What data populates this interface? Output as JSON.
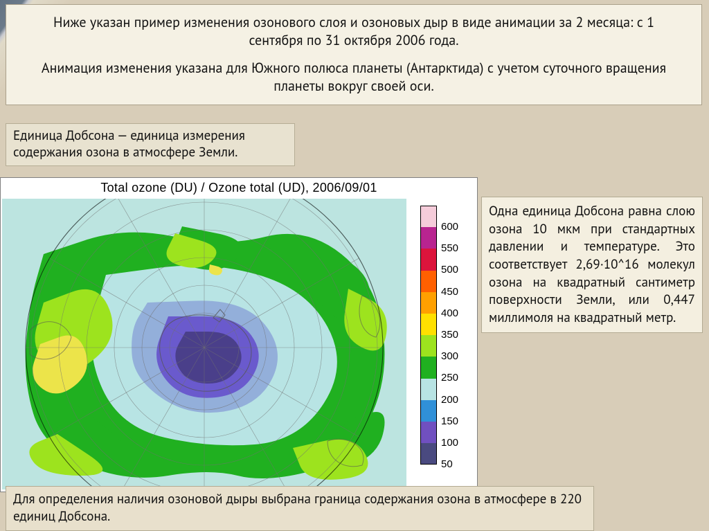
{
  "top": {
    "line1": "Ниже указан пример изменения озонового слоя и озоновых дыр в виде анимации за 2 месяца: с 1 сентября по 31 октября 2006 года.",
    "line2": "Анимация изменения указана для Южного полюса планеты (Антарктида) с учетом суточного вращения планеты вокруг своей оси."
  },
  "dobson": "Единица Добсона — единица измерения содержания озона в атмосфере Земли.",
  "chart": {
    "title": "Total ozone (DU) / Ozone total (UD), 2006/09/01",
    "bg_ocean": "#bce4e0",
    "legend": [
      {
        "v": 600,
        "c": "#f5ccda"
      },
      {
        "v": 550,
        "c": "#b82490"
      },
      {
        "v": 500,
        "c": "#dc143c"
      },
      {
        "v": 450,
        "c": "#ff6000"
      },
      {
        "v": 400,
        "c": "#ffa000"
      },
      {
        "v": 350,
        "c": "#ffe000"
      },
      {
        "v": 300,
        "c": "#9de31e"
      },
      {
        "v": 250,
        "c": "#20b020"
      },
      {
        "v": 200,
        "c": "#b8e4e4"
      },
      {
        "v": 150,
        "c": "#3090d8"
      },
      {
        "v": 100,
        "c": "#7050c0"
      },
      {
        "v": 50,
        "c": "#4a4a80"
      }
    ],
    "blob_colors": {
      "yellow": "#ece44a",
      "lightgreen": "#9de31e",
      "green": "#20b020",
      "paleblue": "#b8e4e4",
      "midblue": "#8fa8d8",
      "blue": "#6a5acd",
      "darkpurple": "#4a3f8a"
    },
    "grid_color": "#707070",
    "land_outline": "#555555"
  },
  "right": "Одна единица Добсона равна слою озона 10 мкм при стандартных давлении и температуре. Это соответствует 2,69·10^16 молекул озона на квадратный сантиметр поверхности Земли, или 0,447 миллимоля на квадратный метр.",
  "bottom": "Для определения наличия озоновой дыры выбрана граница содержания озона в атмосфере в 220 единиц Добсона."
}
